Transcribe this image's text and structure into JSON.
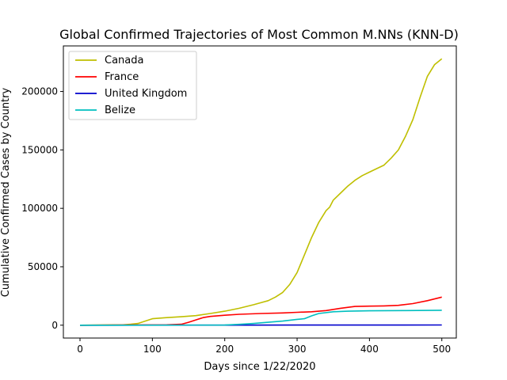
{
  "chart_data": {
    "type": "line",
    "title": "Global Confirmed Trajectories of Most Common M.NNs (KNN-D)",
    "xlabel": "Days since 1/22/2020",
    "ylabel": "Cumulative Confirmed Cases by Country",
    "xlim": [
      -23,
      520
    ],
    "ylim": [
      -11000,
      239000
    ],
    "xticks": [
      0,
      100,
      200,
      300,
      400,
      500
    ],
    "xtick_labels": [
      "0",
      "100",
      "200",
      "300",
      "400",
      "500"
    ],
    "yticks": [
      0,
      50000,
      100000,
      150000,
      200000
    ],
    "ytick_labels": [
      "0",
      "50000",
      "100000",
      "150000",
      "200000"
    ],
    "grid": false,
    "legend_position": "top-left",
    "series": [
      {
        "name": "Canada",
        "color": "#bfbf00",
        "points": [
          [
            0,
            0
          ],
          [
            60,
            300
          ],
          [
            70,
            800
          ],
          [
            80,
            1500
          ],
          [
            90,
            3500
          ],
          [
            100,
            5500
          ],
          [
            120,
            6500
          ],
          [
            140,
            7200
          ],
          [
            160,
            8200
          ],
          [
            180,
            10000
          ],
          [
            200,
            12000
          ],
          [
            220,
            14500
          ],
          [
            240,
            17500
          ],
          [
            260,
            21000
          ],
          [
            270,
            24000
          ],
          [
            280,
            28000
          ],
          [
            290,
            35000
          ],
          [
            300,
            45000
          ],
          [
            310,
            60000
          ],
          [
            320,
            75000
          ],
          [
            330,
            88000
          ],
          [
            340,
            98000
          ],
          [
            345,
            101000
          ],
          [
            350,
            107000
          ],
          [
            360,
            113000
          ],
          [
            370,
            119000
          ],
          [
            380,
            124000
          ],
          [
            390,
            128000
          ],
          [
            400,
            131000
          ],
          [
            410,
            134000
          ],
          [
            420,
            137000
          ],
          [
            430,
            143000
          ],
          [
            440,
            150000
          ],
          [
            450,
            162000
          ],
          [
            460,
            176000
          ],
          [
            470,
            195000
          ],
          [
            480,
            213000
          ],
          [
            490,
            223000
          ],
          [
            500,
            228000
          ]
        ]
      },
      {
        "name": "France",
        "color": "#ff0000",
        "points": [
          [
            0,
            0
          ],
          [
            120,
            300
          ],
          [
            140,
            800
          ],
          [
            150,
            2500
          ],
          [
            160,
            4500
          ],
          [
            170,
            6500
          ],
          [
            180,
            7500
          ],
          [
            200,
            8500
          ],
          [
            220,
            9300
          ],
          [
            250,
            10000
          ],
          [
            280,
            10500
          ],
          [
            300,
            11000
          ],
          [
            320,
            11500
          ],
          [
            340,
            12500
          ],
          [
            360,
            14500
          ],
          [
            380,
            16000
          ],
          [
            400,
            16300
          ],
          [
            420,
            16500
          ],
          [
            440,
            17000
          ],
          [
            460,
            18500
          ],
          [
            480,
            21000
          ],
          [
            500,
            24000
          ]
        ]
      },
      {
        "name": "United Kingdom",
        "color": "#0000cc",
        "points": [
          [
            0,
            0
          ],
          [
            200,
            50
          ],
          [
            300,
            80
          ],
          [
            400,
            100
          ],
          [
            500,
            150
          ]
        ]
      },
      {
        "name": "Belize",
        "color": "#00bfbf",
        "points": [
          [
            0,
            0
          ],
          [
            200,
            100
          ],
          [
            220,
            700
          ],
          [
            240,
            1500
          ],
          [
            260,
            2500
          ],
          [
            280,
            3500
          ],
          [
            300,
            5000
          ],
          [
            310,
            5500
          ],
          [
            320,
            8000
          ],
          [
            330,
            10000
          ],
          [
            350,
            11500
          ],
          [
            370,
            12000
          ],
          [
            400,
            12300
          ],
          [
            450,
            12500
          ],
          [
            500,
            12800
          ]
        ]
      }
    ]
  }
}
